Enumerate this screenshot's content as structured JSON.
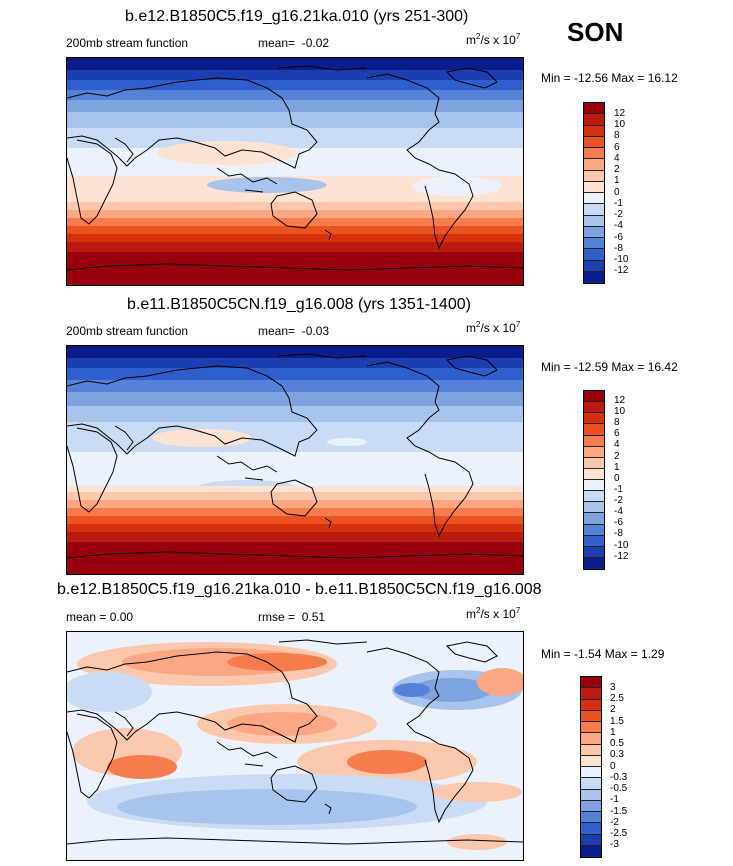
{
  "season": "SON",
  "panels": [
    {
      "title": "b.e12.B1850C5.f19_g16.21ka.010 (yrs 251-300)",
      "left_label": "200mb stream function",
      "center_label_name": "mean=",
      "center_label_value": "-0.02",
      "units_base": "m",
      "units_exp": "2",
      "units_mid": "/s x 10",
      "units_pow": "7",
      "minmax": "Min = -12.56 Max =  16.12",
      "colorbar_levels": [
        "12",
        "10",
        "8",
        "6",
        "4",
        "2",
        "1",
        "0",
        "-1",
        "-2",
        "-4",
        "-6",
        "-8",
        "-10",
        "-12"
      ]
    },
    {
      "title": "b.e11.B1850C5CN.f19_g16.008 (yrs 1351-1400)",
      "left_label": "200mb stream function",
      "center_label_name": "mean=",
      "center_label_value": "-0.03",
      "units_base": "m",
      "units_exp": "2",
      "units_mid": "/s x 10",
      "units_pow": "7",
      "minmax": "Min = -12.59 Max =  16.42",
      "colorbar_levels": [
        "12",
        "10",
        "8",
        "6",
        "4",
        "2",
        "1",
        "0",
        "-1",
        "-2",
        "-4",
        "-6",
        "-8",
        "-10",
        "-12"
      ]
    },
    {
      "title": "b.e12.B1850C5.f19_g16.21ka.010 - b.e11.B1850C5CN.f19_g16.008",
      "left_label": "mean =   0.00",
      "center_label_name": "rmse =",
      "center_label_value": "0.51",
      "units_base": "m",
      "units_exp": "2",
      "units_mid": "/s x 10",
      "units_pow": "7",
      "minmax": "Min =  -1.54 Max =   1.29",
      "colorbar_levels": [
        "3",
        "2.5",
        "2",
        "1.5",
        "1",
        "0.5",
        "0.3",
        "0",
        "-0.3",
        "-0.5",
        "-1",
        "-1.5",
        "-2",
        "-2.5",
        "-3"
      ]
    }
  ],
  "colors": {
    "bar16": [
      "#99000d",
      "#bb1a0e",
      "#d6310f",
      "#eb5222",
      "#f67c4d",
      "#fba783",
      "#fcc8ad",
      "#fde3d2",
      "#ecf2fb",
      "#cadcf3",
      "#a8c4ec",
      "#7da3e0",
      "#5482d6",
      "#2f5fcc",
      "#1b3fb0",
      "#0b1d8a"
    ]
  }
}
